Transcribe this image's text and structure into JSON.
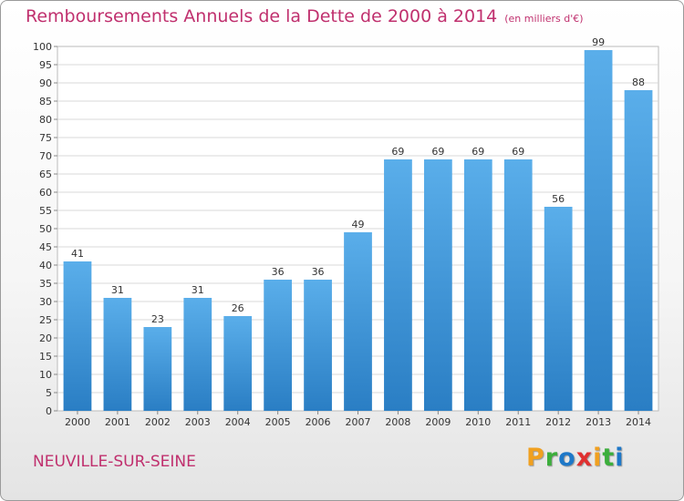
{
  "page": {
    "title": "Remboursements Annuels de la Dette de 2000 à 2014",
    "unit": "(en milliers d'€)",
    "city": "NEUVILLE-SUR-SEINE",
    "logo": {
      "letters": [
        "P",
        "r",
        "o",
        "x",
        "i",
        "t",
        "i"
      ],
      "colors": [
        "#f0a020",
        "#3cae3c",
        "#1e78c8",
        "#e03030",
        "#f0a020",
        "#3cae3c",
        "#1e78c8"
      ]
    }
  },
  "chart_data": {
    "type": "bar",
    "title": "Remboursements Annuels de la Dette de 2000 à 2014",
    "xlabel": "",
    "ylabel": "",
    "categories": [
      "2000",
      "2001",
      "2002",
      "2003",
      "2004",
      "2005",
      "2006",
      "2007",
      "2008",
      "2009",
      "2010",
      "2011",
      "2012",
      "2013",
      "2014"
    ],
    "values": [
      41,
      31,
      23,
      31,
      26,
      36,
      36,
      49,
      69,
      69,
      69,
      69,
      56,
      99,
      88
    ],
    "ylim": [
      0,
      100
    ],
    "ytick_step": 5,
    "grid": "horizontal",
    "bar_color_top": "#5aaeea",
    "bar_color_bottom": "#2a7ec4"
  }
}
